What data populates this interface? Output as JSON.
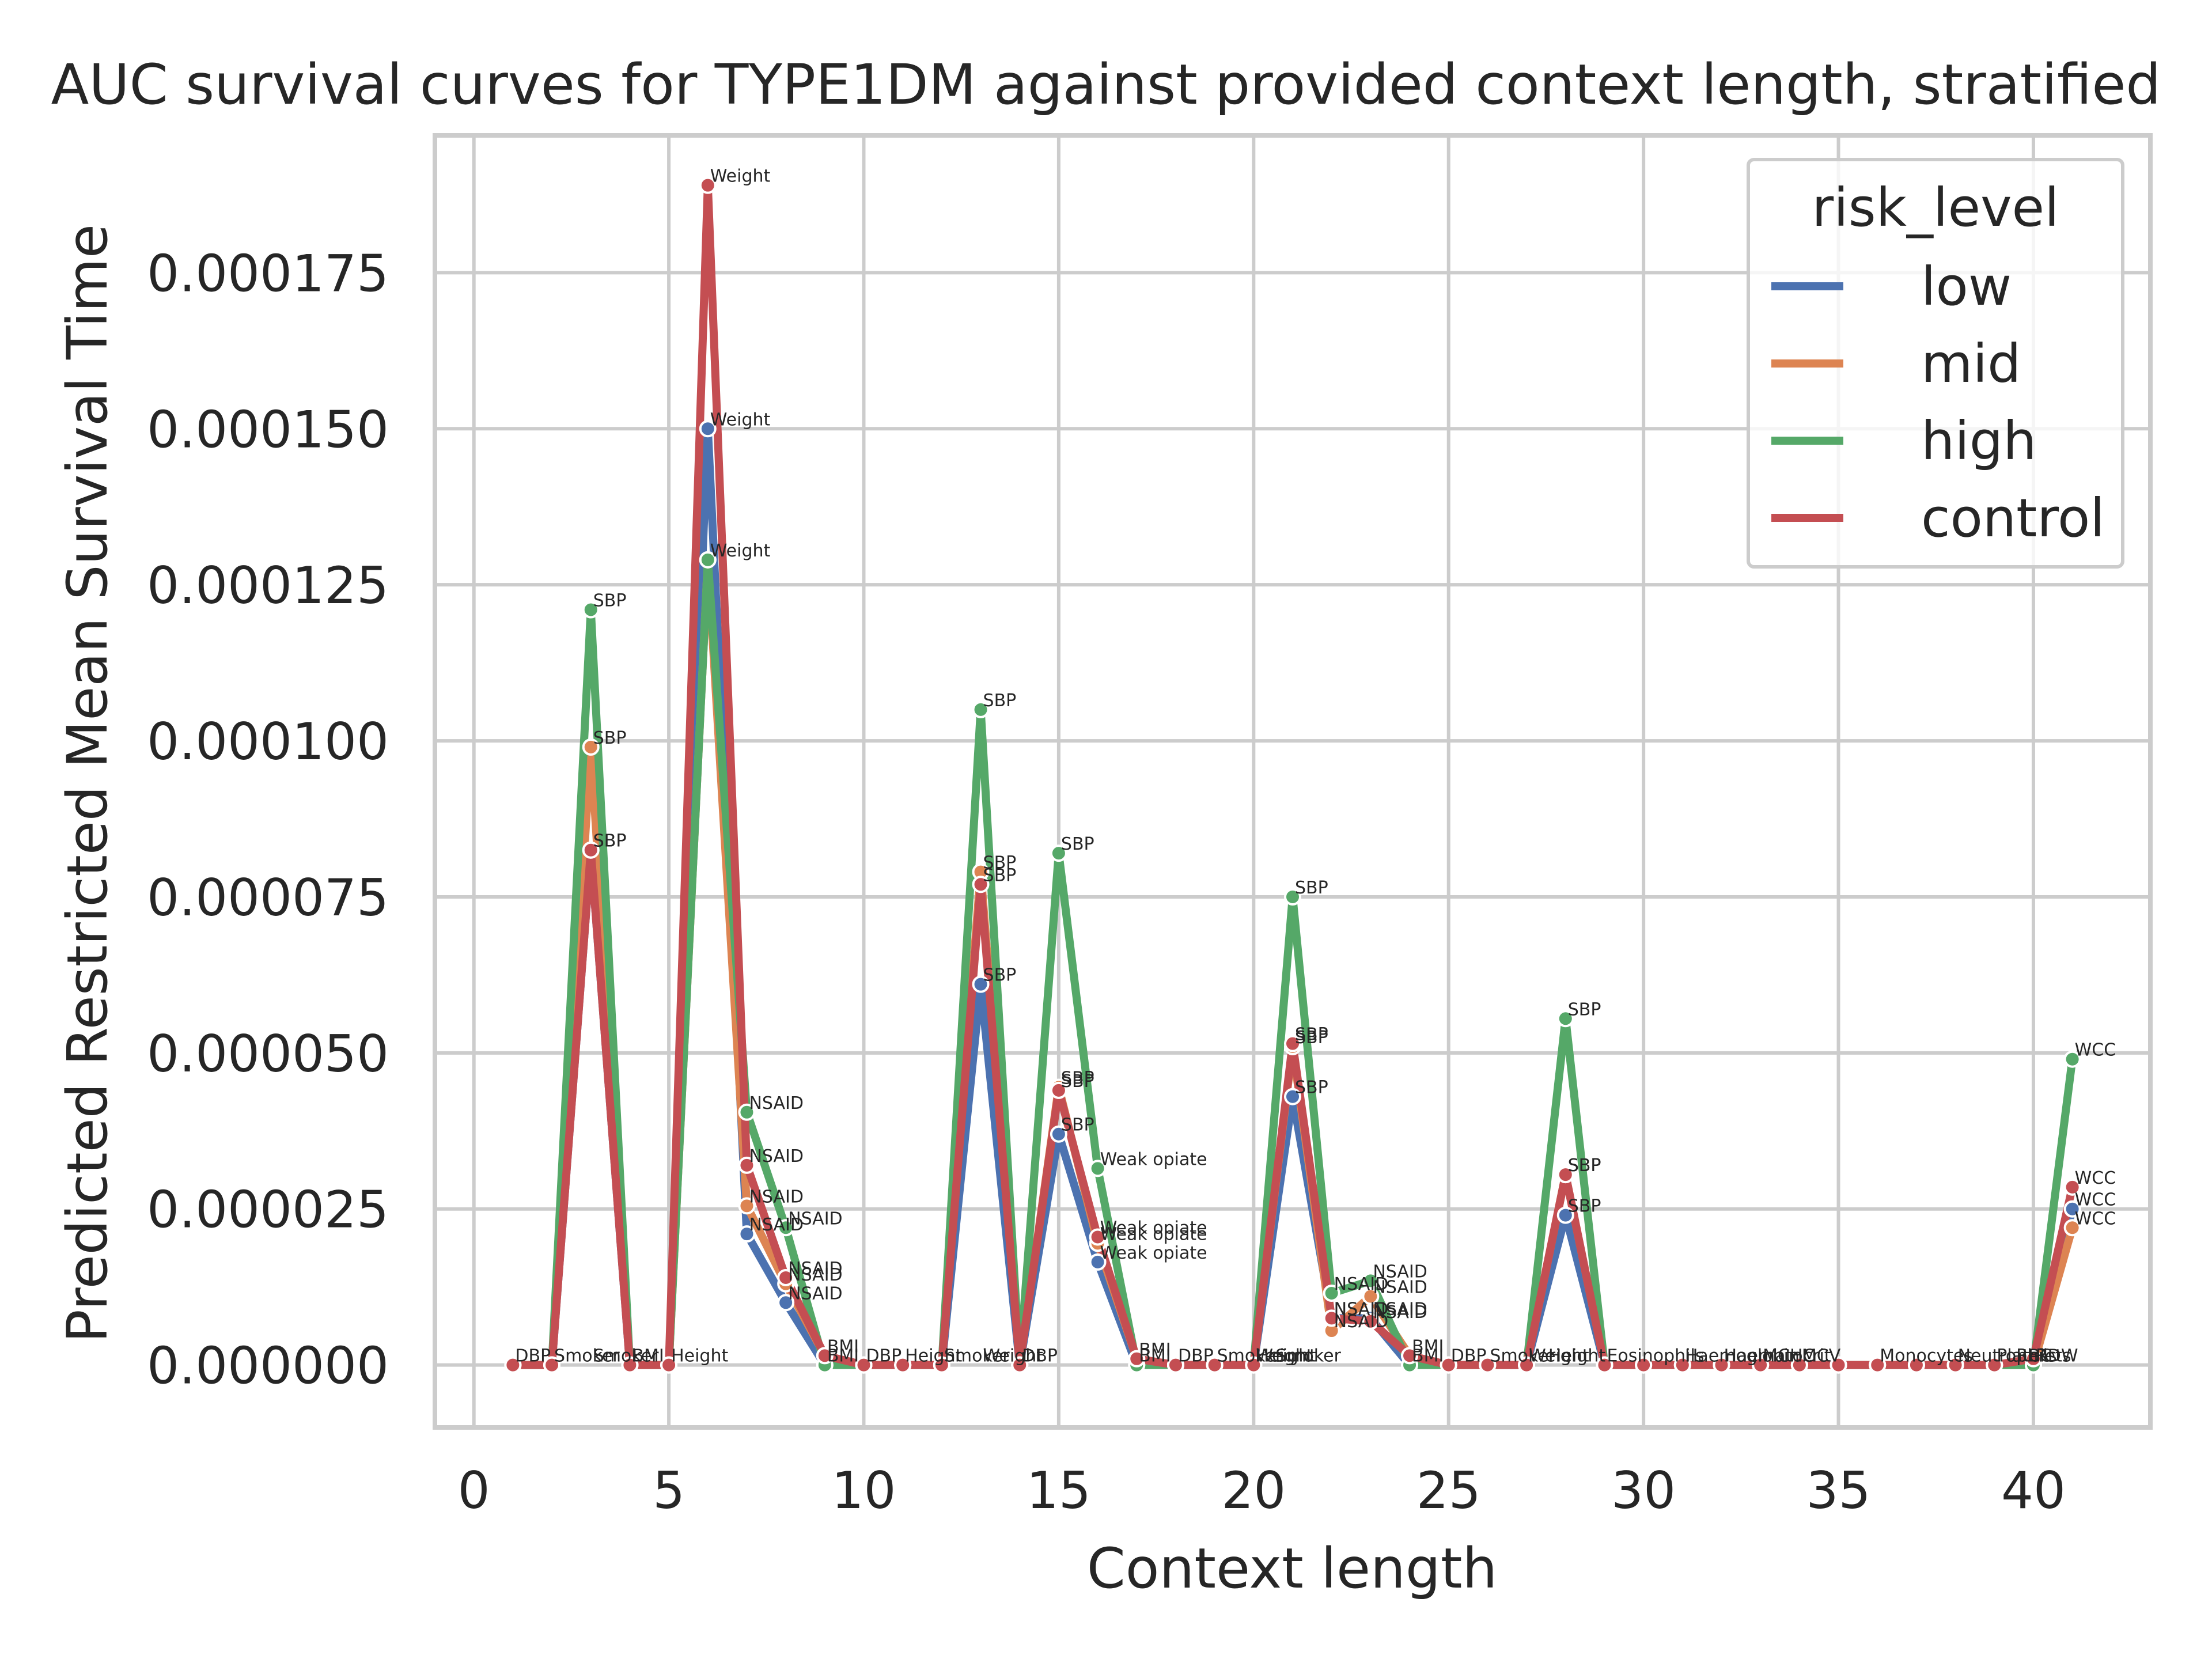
{
  "chart_data": {
    "type": "line",
    "title": "AUC survival curves for TYPE1DM against provided context length, stratified",
    "xlabel": "Context length",
    "ylabel": "Predicted Restricted Mean Survival Time",
    "xlim": [
      -1,
      43
    ],
    "ylim": [
      -1e-05,
      0.000197
    ],
    "xticks": [
      0,
      5,
      10,
      15,
      20,
      25,
      30,
      35,
      40
    ],
    "yticks": [
      0.0,
      2.5e-05,
      5e-05,
      7.5e-05,
      0.0001,
      0.000125,
      0.00015,
      0.000175
    ],
    "ytick_labels": [
      "0.000000",
      "0.000025",
      "0.000050",
      "0.000075",
      "0.000100",
      "0.000125",
      "0.000150",
      "0.000175"
    ],
    "grid": true,
    "legend": {
      "title": "risk_level",
      "position": "top-right"
    },
    "x": [
      1,
      2,
      3,
      4,
      5,
      6,
      7,
      8,
      9,
      10,
      11,
      12,
      13,
      14,
      15,
      16,
      17,
      18,
      19,
      20,
      21,
      22,
      23,
      24,
      25,
      26,
      27,
      28,
      29,
      30,
      31,
      32,
      33,
      34,
      35,
      36,
      37,
      38,
      39,
      40,
      41
    ],
    "series": [
      {
        "name": "low",
        "color": "#4c72b0",
        "values": [
          0,
          0,
          8.25e-05,
          0,
          0,
          0.00015,
          2.1e-05,
          1e-05,
          0,
          0,
          0,
          0,
          6.1e-05,
          0,
          3.7e-05,
          1.65e-05,
          0,
          0,
          0,
          0,
          4.3e-05,
          7.5e-06,
          7.5e-06,
          0,
          0,
          0,
          0,
          2.4e-05,
          0,
          0,
          0,
          0,
          0,
          0,
          0,
          0,
          0,
          0,
          0,
          0,
          2.5e-05
        ]
      },
      {
        "name": "mid",
        "color": "#dd8452",
        "values": [
          0,
          0,
          9.9e-05,
          0,
          0,
          0.000129,
          2.55e-05,
          1.3e-05,
          1.5e-06,
          0,
          0,
          0,
          7.9e-05,
          0,
          4.45e-05,
          1.95e-05,
          1e-06,
          0,
          0,
          0,
          5.1e-05,
          5.5e-06,
          1.1e-05,
          1.5e-06,
          0,
          0,
          0,
          3.05e-05,
          0,
          0,
          0,
          0,
          0,
          0,
          0,
          0,
          0,
          0,
          0,
          0,
          2.2e-05
        ]
      },
      {
        "name": "high",
        "color": "#55a868",
        "values": [
          0,
          0,
          0.000121,
          0,
          0,
          0.000129,
          4.05e-05,
          2.2e-05,
          0,
          0,
          0,
          0,
          0.000105,
          0,
          8.2e-05,
          3.15e-05,
          0,
          0,
          0,
          0,
          7.5e-05,
          1.15e-05,
          1.35e-05,
          0,
          0,
          0,
          0,
          5.55e-05,
          0,
          0,
          0,
          0,
          0,
          0,
          0,
          0,
          0,
          0,
          0,
          0,
          4.9e-05
        ]
      },
      {
        "name": "control",
        "color": "#c44e52",
        "values": [
          0,
          0,
          8.25e-05,
          0,
          0,
          0.000189,
          3.2e-05,
          1.4e-05,
          1.5e-06,
          0,
          0,
          0,
          7.7e-05,
          0,
          4.4e-05,
          2.05e-05,
          1e-06,
          0,
          0,
          0,
          5.15e-05,
          7.5e-06,
          7e-06,
          1.5e-06,
          0,
          0,
          0,
          3.05e-05,
          0,
          0,
          0,
          0,
          0,
          0,
          0,
          0,
          0,
          0,
          0,
          1e-06,
          2.85e-05
        ]
      }
    ],
    "annotations": [
      {
        "x": 1,
        "y": 0,
        "text": "DBP"
      },
      {
        "x": 2,
        "y": 0,
        "text": "Smoker"
      },
      {
        "x": 3,
        "y": 0,
        "text": "Smoker"
      },
      {
        "x": 4,
        "y": 0,
        "text": "BMI"
      },
      {
        "x": 5,
        "y": 0,
        "text": "Height"
      },
      {
        "x": 3,
        "y": 0.000121,
        "text": "SBP"
      },
      {
        "x": 3,
        "y": 9.9e-05,
        "text": "SBP"
      },
      {
        "x": 3,
        "y": 8.25e-05,
        "text": "SBP"
      },
      {
        "x": 3,
        "y": 8.25e-05,
        "text": "SBP"
      },
      {
        "x": 6,
        "y": 0.000189,
        "text": "Weight"
      },
      {
        "x": 6,
        "y": 0.00015,
        "text": "Weight"
      },
      {
        "x": 6,
        "y": 0.000129,
        "text": "Weight"
      },
      {
        "x": 7,
        "y": 4.05e-05,
        "text": "NSAID"
      },
      {
        "x": 7,
        "y": 3.2e-05,
        "text": "NSAID"
      },
      {
        "x": 7,
        "y": 2.55e-05,
        "text": "NSAID"
      },
      {
        "x": 7,
        "y": 2.1e-05,
        "text": "NSAID"
      },
      {
        "x": 8,
        "y": 2.2e-05,
        "text": "NSAID"
      },
      {
        "x": 8,
        "y": 1.4e-05,
        "text": "NSAID"
      },
      {
        "x": 8,
        "y": 1.3e-05,
        "text": "NSAID"
      },
      {
        "x": 8,
        "y": 1e-05,
        "text": "NSAID"
      },
      {
        "x": 9,
        "y": 1.5e-06,
        "text": "BMI"
      },
      {
        "x": 9,
        "y": 0,
        "text": "BMI"
      },
      {
        "x": 10,
        "y": 0,
        "text": "DBP"
      },
      {
        "x": 11,
        "y": 0,
        "text": "Height"
      },
      {
        "x": 12,
        "y": 0,
        "text": "Smoker"
      },
      {
        "x": 13,
        "y": 0,
        "text": "Weight"
      },
      {
        "x": 14,
        "y": 0,
        "text": "DBP"
      },
      {
        "x": 13,
        "y": 0.000105,
        "text": "SBP"
      },
      {
        "x": 13,
        "y": 7.9e-05,
        "text": "SBP"
      },
      {
        "x": 13,
        "y": 7.7e-05,
        "text": "SBP"
      },
      {
        "x": 13,
        "y": 6.1e-05,
        "text": "SBP"
      },
      {
        "x": 15,
        "y": 4.45e-05,
        "text": "SBP"
      },
      {
        "x": 15,
        "y": 4.4e-05,
        "text": "SBP"
      },
      {
        "x": 15,
        "y": 3.7e-05,
        "text": "SBP"
      },
      {
        "x": 15,
        "y": 8.2e-05,
        "text": "SBP"
      },
      {
        "x": 16,
        "y": 3.15e-05,
        "text": "Weak opiate"
      },
      {
        "x": 16,
        "y": 2.05e-05,
        "text": "Weak opiate"
      },
      {
        "x": 16,
        "y": 1.95e-05,
        "text": "Weak opiate"
      },
      {
        "x": 16,
        "y": 1.65e-05,
        "text": "Weak opiate"
      },
      {
        "x": 17,
        "y": 1e-06,
        "text": "BMI"
      },
      {
        "x": 17,
        "y": 0,
        "text": "BMI"
      },
      {
        "x": 18,
        "y": 0,
        "text": "DBP"
      },
      {
        "x": 19,
        "y": 0,
        "text": "Smoker"
      },
      {
        "x": 20,
        "y": 0,
        "text": "Height"
      },
      {
        "x": 20,
        "y": 0,
        "text": "Weight"
      },
      {
        "x": 20.5,
        "y": 0,
        "text": "Smoker"
      },
      {
        "x": 21,
        "y": 7.5e-05,
        "text": "SBP"
      },
      {
        "x": 21,
        "y": 5.15e-05,
        "text": "SBP"
      },
      {
        "x": 21,
        "y": 5.1e-05,
        "text": "SBP"
      },
      {
        "x": 21,
        "y": 4.3e-05,
        "text": "SBP"
      },
      {
        "x": 22,
        "y": 1.15e-05,
        "text": "NSAID"
      },
      {
        "x": 22,
        "y": 7.5e-06,
        "text": "NSAID"
      },
      {
        "x": 22,
        "y": 7.5e-06,
        "text": "NSAID"
      },
      {
        "x": 22,
        "y": 5.5e-06,
        "text": "NSAID"
      },
      {
        "x": 23,
        "y": 1.35e-05,
        "text": "NSAID"
      },
      {
        "x": 23,
        "y": 1.1e-05,
        "text": "NSAID"
      },
      {
        "x": 23,
        "y": 7.5e-06,
        "text": "NSAID"
      },
      {
        "x": 23,
        "y": 7e-06,
        "text": "NSAID"
      },
      {
        "x": 24,
        "y": 1.5e-06,
        "text": "BMI"
      },
      {
        "x": 24,
        "y": 0,
        "text": "BMI"
      },
      {
        "x": 25,
        "y": 0,
        "text": "DBP"
      },
      {
        "x": 26,
        "y": 0,
        "text": "Smoker"
      },
      {
        "x": 27,
        "y": 0,
        "text": "Weight"
      },
      {
        "x": 27.5,
        "y": 0,
        "text": "Height"
      },
      {
        "x": 28,
        "y": 5.55e-05,
        "text": "SBP"
      },
      {
        "x": 28,
        "y": 3.05e-05,
        "text": "SBP"
      },
      {
        "x": 28,
        "y": 3.05e-05,
        "text": "SBP"
      },
      {
        "x": 28,
        "y": 2.4e-05,
        "text": "SBP"
      },
      {
        "x": 29,
        "y": 0,
        "text": "Eosinophils"
      },
      {
        "x": 31,
        "y": 0,
        "text": "Haemoglobin"
      },
      {
        "x": 32,
        "y": 0,
        "text": "Haematocrit"
      },
      {
        "x": 33,
        "y": 0,
        "text": "MCHC"
      },
      {
        "x": 34,
        "y": 0,
        "text": "MCV"
      },
      {
        "x": 36,
        "y": 0,
        "text": "Monocytes"
      },
      {
        "x": 38,
        "y": 0,
        "text": "Neutrophils"
      },
      {
        "x": 39,
        "y": 0,
        "text": "Platelets"
      },
      {
        "x": 39.5,
        "y": 0,
        "text": "RBC"
      },
      {
        "x": 40,
        "y": 0,
        "text": "RDW"
      },
      {
        "x": 41,
        "y": 4.9e-05,
        "text": "WCC"
      },
      {
        "x": 41,
        "y": 2.85e-05,
        "text": "WCC"
      },
      {
        "x": 41,
        "y": 2.5e-05,
        "text": "WCC"
      },
      {
        "x": 41,
        "y": 2.2e-05,
        "text": "WCC"
      }
    ]
  }
}
